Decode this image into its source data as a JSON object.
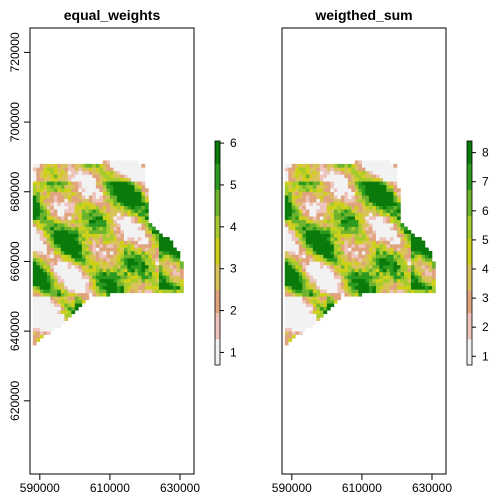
{
  "chart_data": [
    {
      "type": "heatmap",
      "title": "equal_weights",
      "xlabel": "",
      "ylabel": "",
      "xlim": [
        587200,
        634000
      ],
      "ylim": [
        599000,
        727000
      ],
      "xticks": [
        590000,
        610000,
        630000
      ],
      "xtick_labels": [
        "590000",
        "610000",
        "630000"
      ],
      "yticks": [
        620000,
        640000,
        660000,
        680000,
        700000,
        720000
      ],
      "ytick_labels": [
        "620000",
        "640000",
        "660000",
        "680000",
        "700000",
        "720000"
      ],
      "colorbar": {
        "ticks": [
          1,
          2,
          3,
          4,
          5,
          6
        ],
        "tick_labels": [
          "1",
          "2",
          "3",
          "4",
          "5",
          "6"
        ],
        "range": [
          0.7,
          6.05
        ],
        "palette": [
          "#f2f2f2",
          "#eec3bb",
          "#dfa47d",
          "#d8c25a",
          "#cfd01a",
          "#a5cc2c",
          "#6db32c",
          "#2b9a1e",
          "#0a7a0a"
        ]
      },
      "grid": false,
      "legend": "colorbar-right"
    },
    {
      "type": "heatmap",
      "title": "weigthed_sum",
      "xlabel": "",
      "ylabel": "",
      "xlim": [
        587200,
        634000
      ],
      "ylim": [
        599000,
        727000
      ],
      "xticks": [
        590000,
        610000,
        630000
      ],
      "xtick_labels": [
        "590000",
        "610000",
        "630000"
      ],
      "yticks": [],
      "ytick_labels": [],
      "colorbar": {
        "ticks": [
          1,
          2,
          3,
          4,
          5,
          6,
          7,
          8
        ],
        "tick_labels": [
          "1",
          "2",
          "3",
          "4",
          "5",
          "6",
          "7",
          "8"
        ],
        "range": [
          0.7,
          8.4
        ],
        "palette": [
          "#f2f2f2",
          "#eec3bb",
          "#dfa47d",
          "#d8c25a",
          "#cfd01a",
          "#a5cc2c",
          "#6db32c",
          "#2b9a1e",
          "#0a7a0a"
        ]
      },
      "grid": false,
      "legend": "colorbar-right"
    }
  ]
}
